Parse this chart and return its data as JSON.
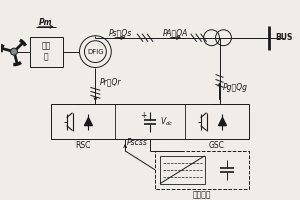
{
  "bg_color": "#f0ede8",
  "lc": "#1a1a1a",
  "text_gearbox": "齿轮\n筱",
  "text_dfig": "DFIG",
  "text_bus": "BUS",
  "text_rsc": "RSC",
  "text_gsc": "GSC",
  "text_storage": "储能装置",
  "text_pm": "Pm",
  "text_ps_qs": "Ps，Qs",
  "text_pa_qa": "PA，QA",
  "text_pr_qr": "Pr，Qr",
  "text_pg_qg": "Pg，Qg",
  "text_vdc": "$V_{dc}$",
  "text_pscss": "Pscss"
}
